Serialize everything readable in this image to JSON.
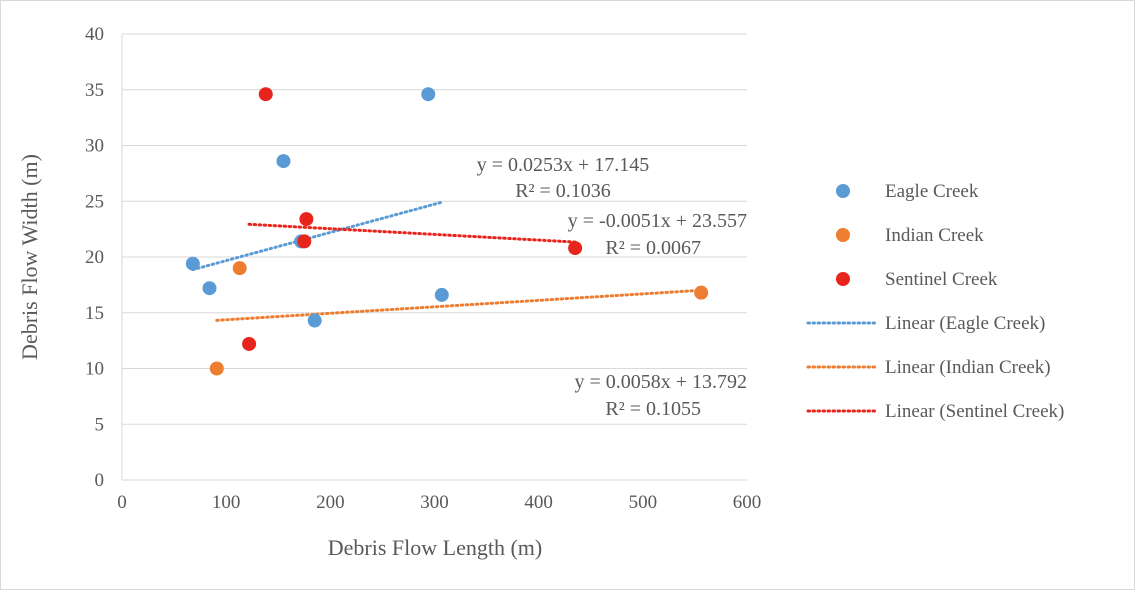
{
  "chart_data": {
    "type": "scatter",
    "title": "",
    "xlabel": "Debris Flow Length (m)",
    "ylabel": "Debris Flow Width (m)",
    "xlim": [
      0,
      600
    ],
    "ylim": [
      0,
      40
    ],
    "x_ticks": [
      0,
      100,
      200,
      300,
      400,
      500,
      600
    ],
    "y_ticks": [
      0,
      5,
      10,
      15,
      20,
      25,
      30,
      35,
      40
    ],
    "grid": "horizontal",
    "legend_position": "right",
    "series": [
      {
        "name": "Eagle Creek",
        "color": "#5b9bd5",
        "points": [
          [
            68,
            19.4
          ],
          [
            84,
            17.2
          ],
          [
            155,
            28.6
          ],
          [
            172,
            21.4
          ],
          [
            185,
            14.3
          ],
          [
            294,
            34.6
          ],
          [
            307,
            16.6
          ]
        ]
      },
      {
        "name": "Indian Creek",
        "color": "#ed7d31",
        "points": [
          [
            91,
            10.0
          ],
          [
            113,
            19.0
          ],
          [
            556,
            16.8
          ]
        ]
      },
      {
        "name": "Sentinel Creek",
        "color": "#e8251d",
        "points": [
          [
            122,
            12.2
          ],
          [
            138,
            34.6
          ],
          [
            175,
            21.4
          ],
          [
            177,
            23.4
          ],
          [
            435,
            20.8
          ]
        ]
      }
    ],
    "trendlines": [
      {
        "name": "Linear (Eagle Creek)",
        "color": "#5b9bd5",
        "slope": 0.0253,
        "intercept": 17.145,
        "x_range": [
          68,
          307
        ],
        "equation": "y = 0.0253x + 17.145",
        "r2": "R² = 0.1036"
      },
      {
        "name": "Linear (Indian Creek)",
        "color": "#ed7d31",
        "slope": 0.0058,
        "intercept": 13.792,
        "x_range": [
          91,
          556
        ],
        "equation": "y = 0.0058x + 13.792",
        "r2": "R² = 0.1055"
      },
      {
        "name": "Linear (Sentinel Creek)",
        "color": "#e8251d",
        "slope": -0.0051,
        "intercept": 23.557,
        "x_range": [
          122,
          435
        ],
        "equation": "y = -0.0051x + 23.557",
        "r2": "R² = 0.0067"
      }
    ]
  }
}
